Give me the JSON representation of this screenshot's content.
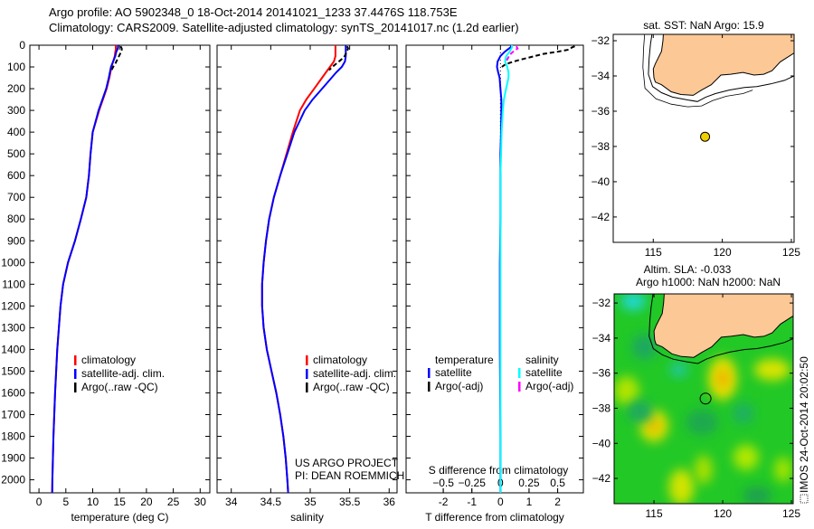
{
  "title": {
    "line1": "Argo profile: AO 5902348_0 18-Oct-2014 20141021_1233 37.4476S 118.753E",
    "line2": "Climatology: CARS2009. Satellite-adjusted climatology: synTS_20141017.nc (1.2d earlier)"
  },
  "colors": {
    "climatology": "#ff0000",
    "satellite": "#0000ff",
    "argo": "#000000",
    "sal_satellite": "#00ffff",
    "sal_argo": "#ff00ff",
    "land": "#fbc896"
  },
  "chart_data": [
    {
      "id": "temperature",
      "type": "line",
      "xlabel": "temperature (deg C)",
      "ylabel": "",
      "xlim": [
        -1.7,
        31.8
      ],
      "ylim": [
        0,
        2060
      ],
      "y_reversed": true,
      "xticks": [
        0,
        5,
        10,
        15,
        20,
        25,
        30
      ],
      "yticks": [
        0,
        100,
        200,
        300,
        400,
        500,
        600,
        700,
        800,
        900,
        1000,
        1100,
        1200,
        1300,
        1400,
        1500,
        1600,
        1700,
        1800,
        1900,
        2000
      ],
      "series": [
        {
          "name": "climatology",
          "color": "#ff0000",
          "depth": [
            0,
            10,
            20,
            30,
            50,
            75,
            100,
            125,
            150,
            200,
            250,
            300,
            400,
            500,
            600,
            700,
            800,
            900,
            1000,
            1100,
            1200,
            1300,
            1400,
            1500,
            1600,
            1700,
            1800,
            1900,
            2000,
            2060
          ],
          "values": [
            14.3,
            14.3,
            14.3,
            14.2,
            14.1,
            13.8,
            13.5,
            13.3,
            13.1,
            12.6,
            11.9,
            11.2,
            10.0,
            9.6,
            9.3,
            8.8,
            7.8,
            6.7,
            5.4,
            4.5,
            4.0,
            3.7,
            3.4,
            3.2,
            3.0,
            2.85,
            2.7,
            2.6,
            2.5,
            2.45
          ]
        },
        {
          "name": "satellite-adj. clim.",
          "color": "#0000ff",
          "depth": [
            0,
            10,
            20,
            30,
            50,
            75,
            100,
            125,
            150,
            200,
            250,
            300,
            400,
            500,
            600,
            700,
            800,
            900,
            1000,
            1100,
            1200,
            1300,
            1400,
            1500,
            1600,
            1700,
            1800,
            1900,
            2000,
            2060
          ],
          "values": [
            14.7,
            14.7,
            14.6,
            14.4,
            14.2,
            13.8,
            13.4,
            13.2,
            13.0,
            12.5,
            11.8,
            11.1,
            10.0,
            9.6,
            9.3,
            8.8,
            7.8,
            6.7,
            5.4,
            4.5,
            4.0,
            3.7,
            3.4,
            3.2,
            3.0,
            2.85,
            2.7,
            2.6,
            2.5,
            2.45
          ]
        },
        {
          "name": "Argo(..raw -QC)",
          "color": "#000000",
          "dashed": true,
          "depth": [
            5,
            15,
            25,
            40,
            55,
            70,
            85,
            100,
            115
          ],
          "values": [
            15.2,
            15.4,
            15.4,
            15.1,
            14.8,
            14.5,
            14.2,
            13.8,
            13.5
          ]
        }
      ],
      "legend": [
        "climatology",
        "satellite-adj. clim.",
        "Argo(..raw -QC)"
      ],
      "legend_position": "lower-center"
    },
    {
      "id": "salinity",
      "type": "line",
      "xlabel": "salinity",
      "xlim": [
        33.82,
        36.1
      ],
      "ylim": [
        0,
        2060
      ],
      "y_reversed": true,
      "xticks": [
        34,
        34.5,
        35,
        35.5,
        36
      ],
      "series": [
        {
          "name": "climatology",
          "color": "#ff0000",
          "depth": [
            0,
            10,
            20,
            30,
            50,
            75,
            100,
            125,
            150,
            200,
            250,
            300,
            400,
            500,
            600,
            700,
            800,
            900,
            1000,
            1100,
            1200,
            1300,
            1400,
            1500,
            1600,
            1700,
            1800,
            1900,
            2000,
            2060
          ],
          "values": [
            35.32,
            35.32,
            35.32,
            35.32,
            35.32,
            35.3,
            35.25,
            35.2,
            35.15,
            35.05,
            34.95,
            34.87,
            34.78,
            34.7,
            34.62,
            34.54,
            34.48,
            34.44,
            34.41,
            34.39,
            34.39,
            34.41,
            34.45,
            34.51,
            34.57,
            34.62,
            34.66,
            34.69,
            34.71,
            34.72
          ]
        },
        {
          "name": "satellite-adj. clim.",
          "color": "#0000ff",
          "depth": [
            0,
            10,
            20,
            30,
            50,
            75,
            100,
            125,
            150,
            200,
            250,
            300,
            400,
            500,
            600,
            700,
            800,
            900,
            1000,
            1100,
            1200,
            1300,
            1400,
            1500,
            1600,
            1700,
            1800,
            1900,
            2000,
            2060
          ],
          "values": [
            35.45,
            35.45,
            35.45,
            35.45,
            35.45,
            35.44,
            35.4,
            35.33,
            35.27,
            35.15,
            35.03,
            34.93,
            34.8,
            34.71,
            34.62,
            34.54,
            34.48,
            34.44,
            34.41,
            34.39,
            34.39,
            34.41,
            34.45,
            34.51,
            34.57,
            34.62,
            34.66,
            34.69,
            34.71,
            34.72
          ]
        },
        {
          "name": "Argo(..raw -QC)",
          "color": "#000000",
          "dashed": true,
          "depth": [
            5,
            15,
            25,
            40,
            55,
            70,
            85,
            100,
            115
          ],
          "values": [
            35.47,
            35.48,
            35.47,
            35.45,
            35.43,
            35.38,
            35.33,
            35.28,
            35.24
          ]
        }
      ],
      "legend": [
        "climatology",
        "satellite-adj. clim.",
        "Argo(..raw -QC)"
      ],
      "credit": [
        "US ARGO PROJECT",
        "PI: DEAN ROEMMICH"
      ]
    },
    {
      "id": "difference",
      "type": "line",
      "xlabel": "T difference from climatology",
      "top_xlabel": "S difference from climatology",
      "xlim": [
        -3.3,
        2.9
      ],
      "ylim": [
        0,
        2060
      ],
      "y_reversed": true,
      "xticks": [
        -2,
        -1,
        0,
        1,
        2
      ],
      "top_xticks": [
        -0.5,
        -0.25,
        0,
        0.25,
        0.5
      ],
      "s_to_t_scale": 4,
      "series": [
        {
          "name": "temperature satellite",
          "color": "#0000ff",
          "kind": "T",
          "depth": [
            0,
            10,
            20,
            30,
            50,
            75,
            100,
            125,
            150,
            200,
            250,
            300,
            400,
            500,
            600,
            800,
            1000,
            1200,
            1400,
            1600,
            1800,
            2000,
            2060
          ],
          "values": [
            0.4,
            0.35,
            0.25,
            0.15,
            0.0,
            -0.1,
            -0.12,
            -0.08,
            -0.03,
            0.0,
            0.03,
            0.03,
            0.02,
            0.0,
            0.0,
            0.0,
            -0.02,
            -0.02,
            -0.02,
            -0.01,
            0.0,
            0.0,
            0.0
          ]
        },
        {
          "name": "temperature Argo(-adj)",
          "color": "#000000",
          "kind": "T",
          "dashed": true,
          "depth": [
            5,
            10,
            20,
            30,
            40,
            50,
            60,
            70,
            80,
            90,
            100
          ],
          "values": [
            2.6,
            2.5,
            2.4,
            2.0,
            1.5,
            1.2,
            0.9,
            0.6,
            0.35,
            0.15,
            0.05
          ]
        },
        {
          "name": "salinity satellite",
          "color": "#00ffff",
          "kind": "S",
          "depth": [
            0,
            10,
            20,
            30,
            50,
            75,
            100,
            125,
            150,
            200,
            250,
            300,
            400,
            500,
            600,
            800,
            1000,
            1200,
            1400,
            1600,
            1800,
            2000,
            2060
          ],
          "values": [
            0.1,
            0.1,
            0.09,
            0.08,
            0.05,
            0.04,
            0.06,
            0.07,
            0.07,
            0.05,
            0.03,
            0.02,
            0.01,
            0.005,
            0.0,
            0.0,
            0.0,
            0.0,
            0.0,
            0.0,
            0.0,
            0.0,
            0.0
          ]
        },
        {
          "name": "salinity Argo(-adj)",
          "color": "#ff00ff",
          "kind": "S",
          "dashed": true,
          "depth": [
            5,
            15,
            25,
            35,
            45,
            55,
            65,
            75
          ],
          "values": [
            0.14,
            0.15,
            0.12,
            0.1,
            0.08,
            0.07,
            0.06,
            0.05
          ]
        }
      ],
      "legend": {
        "temperature_heading": "temperature",
        "salinity_heading": "salinity",
        "temperature": [
          "satellite",
          "Argo(-adj)"
        ],
        "salinity": [
          "satellite",
          "Argo(-adj)"
        ]
      }
    },
    {
      "id": "sst-map",
      "type": "scatter",
      "title": "sat. SST: NaN Argo: 15.9",
      "xlim": [
        112.1,
        125.2
      ],
      "ylim": [
        -43.44,
        -31.64
      ],
      "xticks": [
        115,
        120,
        125
      ],
      "yticks": [
        -32,
        -34,
        -36,
        -38,
        -40,
        -42
      ],
      "argo_position": [
        118.753,
        -37.4476
      ]
    },
    {
      "id": "sla-map",
      "type": "heatmap",
      "title_line1": "Altim. SLA: -0.033",
      "title_line2": "Argo h1000: NaN h2000: NaN",
      "xlim": [
        112.1,
        125.13
      ],
      "ylim": [
        -43.44,
        -31.48
      ],
      "xticks": [
        115,
        120,
        125
      ],
      "yticks": [
        -32,
        -34,
        -36,
        -38,
        -40,
        -42
      ],
      "argo_position": [
        118.753,
        -37.4476
      ]
    }
  ],
  "coastline": [
    [
      115.75,
      -31.4
    ],
    [
      115.7,
      -32.0
    ],
    [
      115.6,
      -32.6
    ],
    [
      115.15,
      -33.3
    ],
    [
      115.0,
      -33.6
    ],
    [
      115.05,
      -34.1
    ],
    [
      115.15,
      -34.35
    ],
    [
      115.6,
      -34.5
    ],
    [
      116.3,
      -34.9
    ],
    [
      117.0,
      -35.05
    ],
    [
      117.9,
      -35.1
    ],
    [
      118.5,
      -34.8
    ],
    [
      119.2,
      -34.5
    ],
    [
      119.9,
      -33.95
    ],
    [
      120.6,
      -33.9
    ],
    [
      121.5,
      -33.8
    ],
    [
      122.3,
      -33.95
    ],
    [
      123.0,
      -33.9
    ],
    [
      123.6,
      -33.7
    ],
    [
      124.2,
      -33.2
    ],
    [
      125.2,
      -32.7
    ],
    [
      125.2,
      -31.4
    ]
  ],
  "contour_200m": [
    [
      114.95,
      -31.4
    ],
    [
      114.8,
      -32.2
    ],
    [
      114.7,
      -33.0
    ],
    [
      114.65,
      -33.9
    ],
    [
      114.95,
      -34.6
    ],
    [
      115.6,
      -34.95
    ],
    [
      116.4,
      -35.2
    ],
    [
      117.4,
      -35.35
    ],
    [
      118.2,
      -35.45
    ],
    [
      118.8,
      -35.2
    ],
    [
      119.5,
      -35.0
    ],
    [
      120.5,
      -34.8
    ],
    [
      121.6,
      -34.65
    ],
    [
      122.5,
      -34.6
    ],
    [
      123.5,
      -34.45
    ],
    [
      124.5,
      -34.25
    ],
    [
      125.2,
      -34.0
    ]
  ],
  "contour_2000m": [
    [
      114.4,
      -31.4
    ],
    [
      114.3,
      -32.4
    ],
    [
      114.25,
      -33.5
    ],
    [
      114.4,
      -34.7
    ],
    [
      115.2,
      -35.3
    ],
    [
      116.3,
      -35.6
    ],
    [
      117.5,
      -35.75
    ],
    [
      118.5,
      -35.7
    ],
    [
      119.3,
      -35.4
    ],
    [
      120.3,
      -35.15
    ],
    [
      121.5,
      -35.0
    ],
    [
      122.2,
      -34.8
    ]
  ],
  "footer": {
    "stamp": "IMOS 24-Oct-2014 20:02:50"
  }
}
